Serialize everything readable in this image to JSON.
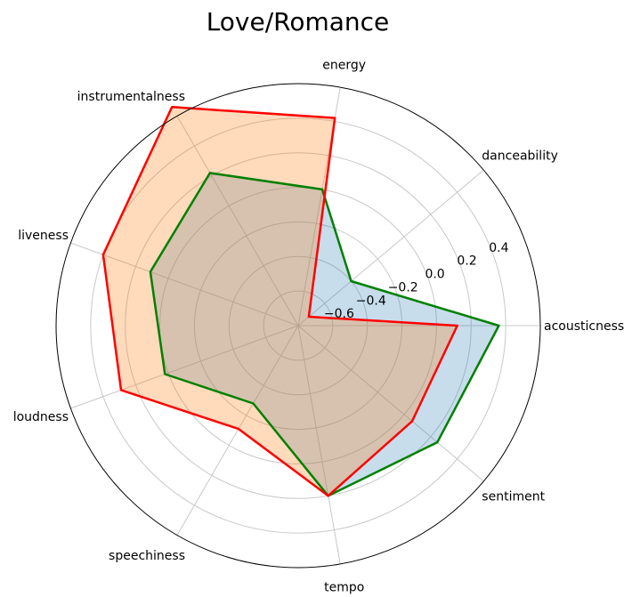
{
  "chart_data": {
    "type": "radar",
    "title": "Love/Romance",
    "axes": [
      "acousticness",
      "danceability",
      "energy",
      "instrumentalness",
      "liveness",
      "loudness",
      "speechiness",
      "tempo",
      "sentiment"
    ],
    "r_range": [
      -0.8,
      0.6
    ],
    "r_ticks": [
      -0.6,
      -0.4,
      -0.2,
      0.0,
      0.2,
      0.4
    ],
    "r_tick_labels": [
      "−0.6",
      "−0.4",
      "−0.2",
      "0.0",
      "0.2",
      "0.4"
    ],
    "grid": true,
    "series": [
      {
        "color": "#008000",
        "fill": "#1f77b4",
        "fill_opacity": 0.25,
        "values": [
          0.36,
          -0.4,
          0.0,
          0.22,
          0.11,
          0.02,
          -0.28,
          0.2,
          0.25
        ]
      },
      {
        "color": "#ff0000",
        "fill": "#ff7f0e",
        "fill_opacity": 0.28,
        "values": [
          0.12,
          -0.72,
          0.42,
          0.66,
          0.4,
          0.29,
          -0.11,
          0.2,
          0.06
        ]
      }
    ]
  }
}
